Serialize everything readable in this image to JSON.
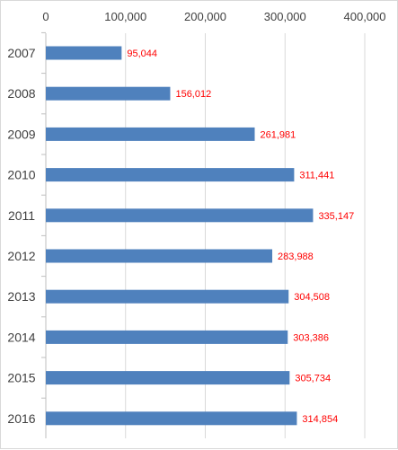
{
  "chart_data": {
    "type": "bar",
    "orientation": "horizontal",
    "title": "",
    "xlabel": "",
    "ylabel": "",
    "categories": [
      "2007",
      "2008",
      "2009",
      "2010",
      "2011",
      "2012",
      "2013",
      "2014",
      "2015",
      "2016"
    ],
    "values": [
      95044,
      156012,
      261981,
      311441,
      335147,
      283988,
      304508,
      303386,
      305734,
      314854
    ],
    "data_labels": [
      "95,044",
      "156,012",
      "261,981",
      "311,441",
      "335,147",
      "283,988",
      "304,508",
      "303,386",
      "305,734",
      "314,854"
    ],
    "xlim": [
      0,
      400000
    ],
    "xticks": [
      0,
      100000,
      200000,
      300000,
      400000
    ],
    "xtick_labels": [
      "0",
      "100,000",
      "200,000",
      "300,000",
      "400,000"
    ],
    "x_axis_position": "top",
    "grid": true,
    "legend": "none",
    "colors": {
      "bar": "#4f81bd",
      "data_label": "#ff0000",
      "grid": "#d9d9d9",
      "axis": "#bfbfbf",
      "text": "#404040"
    }
  }
}
